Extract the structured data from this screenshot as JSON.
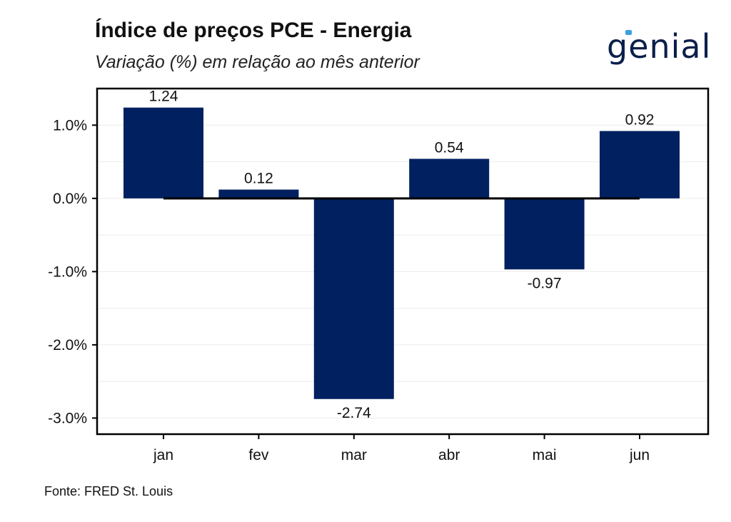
{
  "header": {
    "title": "Índice de preços PCE - Energia",
    "subtitle": "Variação (%) em relação ao mês anterior"
  },
  "logo": {
    "text": "genial",
    "color": "#0b1f4a",
    "accent": "#3aa0e0"
  },
  "footer": {
    "source": "Fonte: FRED St. Louis"
  },
  "chart_data": {
    "type": "bar",
    "title": "Índice de preços PCE - Energia",
    "subtitle": "Variação (%) em relação ao mês anterior",
    "categories": [
      "jan",
      "fev",
      "mar",
      "abr",
      "mai",
      "jun"
    ],
    "values": [
      1.24,
      0.12,
      -2.74,
      0.54,
      -0.97,
      0.92
    ],
    "data_labels": [
      "1.24",
      "0.12",
      "-2.74",
      "0.54",
      "-0.97",
      "0.92"
    ],
    "y_ticks": [
      -3.0,
      -2.0,
      -1.0,
      0.0,
      1.0
    ],
    "y_tick_labels": [
      "-3.0%",
      "-2.0%",
      "-1.0%",
      "0.0%",
      "1.0%"
    ],
    "ylim": [
      -3.22,
      1.5
    ],
    "bar_color": "#002060",
    "zero_line_color": "#000000",
    "grid": true,
    "legend": "none"
  }
}
